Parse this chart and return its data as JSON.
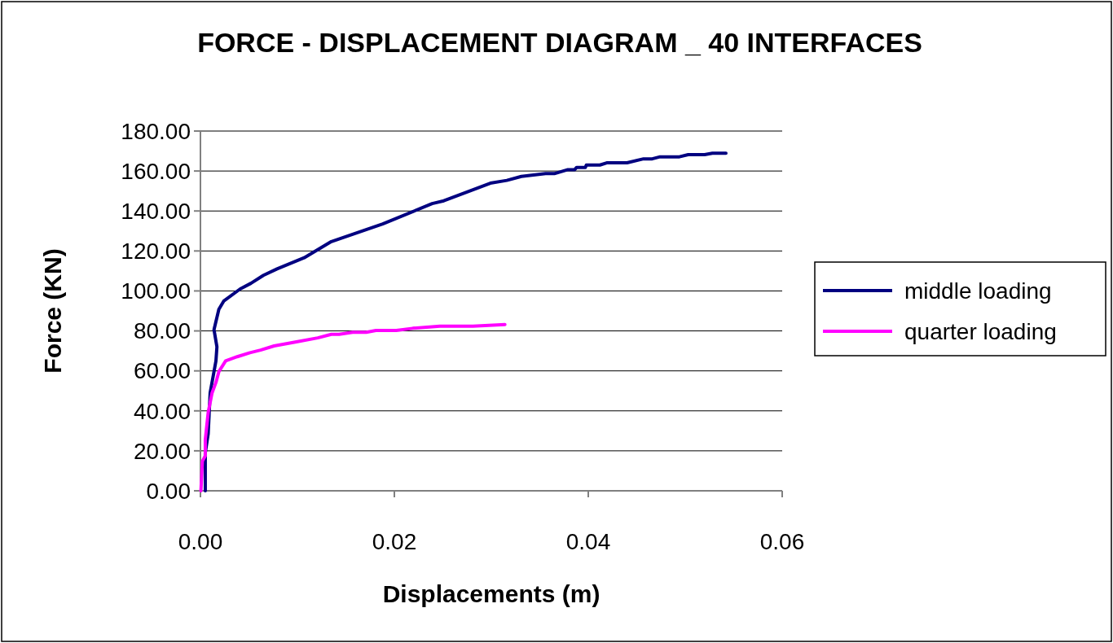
{
  "chart_data": {
    "type": "line",
    "title": "FORCE - DISPLACEMENT DIAGRAM _ 40 INTERFACES",
    "xlabel": "Displacements (m)",
    "ylabel": "Force (KN)",
    "xlim": [
      0,
      0.06
    ],
    "xticks": [
      {
        "value": 0,
        "label": "0.00"
      },
      {
        "value": 0.02,
        "label": "0.02"
      },
      {
        "value": 0.04,
        "label": "0.04"
      },
      {
        "value": 0.06,
        "label": "0.06"
      }
    ],
    "ylim": [
      0,
      180
    ],
    "yticks": [
      {
        "value": 0,
        "label": "0.00"
      },
      {
        "value": 20,
        "label": "20.00"
      },
      {
        "value": 40,
        "label": "40.00"
      },
      {
        "value": 60,
        "label": "60.00"
      },
      {
        "value": 80,
        "label": "80.00"
      },
      {
        "value": 100,
        "label": "100.00"
      },
      {
        "value": 120,
        "label": "120.00"
      },
      {
        "value": 140,
        "label": "140.00"
      },
      {
        "value": 160,
        "label": "160.00"
      },
      {
        "value": 180,
        "label": "180.00"
      }
    ],
    "grid": "y",
    "legend": "right",
    "marker": "none",
    "line_style": "solid",
    "series": [
      {
        "name": "middle loading",
        "color": "#000080",
        "x": [
          0.0005,
          0.0005,
          0.0008,
          0.001,
          0.0016,
          0.0017,
          0.0014,
          0.0019,
          0.0024,
          0.0041,
          0.0052,
          0.0065,
          0.0079,
          0.0107,
          0.0135,
          0.0188,
          0.0239,
          0.0251,
          0.0299,
          0.0316,
          0.0331,
          0.0356,
          0.0365,
          0.0379,
          0.0386,
          0.0388,
          0.0397,
          0.0398,
          0.0412,
          0.0419,
          0.044,
          0.0457,
          0.0466,
          0.0474,
          0.0494,
          0.0503,
          0.052,
          0.0528,
          0.0542
        ],
        "values": [
          0,
          19,
          28.5,
          49,
          65,
          72,
          80.6,
          90.8,
          94.9,
          101,
          103.8,
          107.8,
          111,
          116.6,
          124.7,
          133.5,
          143.7,
          145.1,
          153.9,
          155.3,
          157.3,
          158.7,
          158.7,
          160.7,
          160.7,
          161.8,
          161.8,
          163,
          163,
          164.1,
          164.1,
          166.1,
          166.1,
          167.1,
          167.1,
          168.2,
          168.2,
          168.9,
          168.9
        ]
      },
      {
        "name": "quarter loading",
        "color": "#ff00ff",
        "x": [
          5e-05,
          0.0002,
          0.0005,
          0.0005,
          0.0008,
          0.0012,
          0.0016,
          0.0019,
          0.0026,
          0.0038,
          0.0051,
          0.0062,
          0.0076,
          0.0099,
          0.0121,
          0.0135,
          0.0143,
          0.0157,
          0.0171,
          0.0181,
          0.0202,
          0.0219,
          0.0247,
          0.0281,
          0.0314
        ],
        "values": [
          0,
          14.8,
          17.5,
          25.6,
          39.2,
          49,
          54.2,
          59.6,
          65,
          67.1,
          69.1,
          70.4,
          72.5,
          74.5,
          76.5,
          78.3,
          78.3,
          79.3,
          79.3,
          80.2,
          80.2,
          81.3,
          82.4,
          82.4,
          83.2
        ]
      }
    ]
  }
}
